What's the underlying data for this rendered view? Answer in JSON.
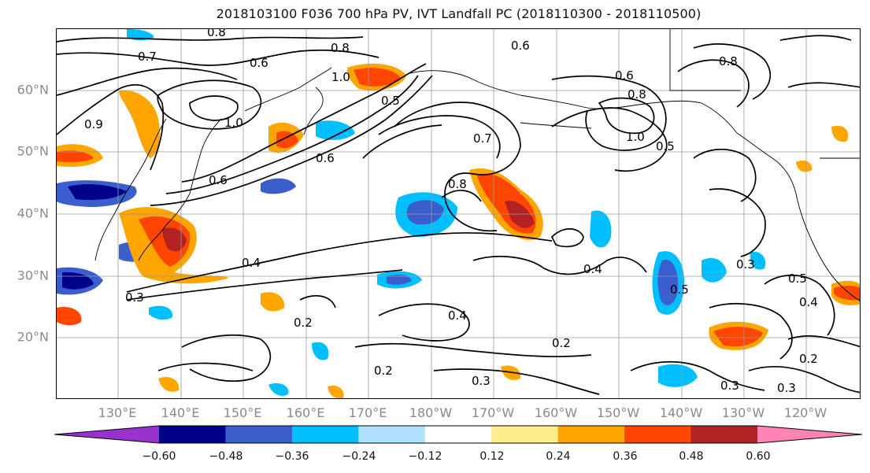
{
  "title": "2018103100 F036 700 hPa PV, IVT Landfall PC (2018110300 - 2018110500)",
  "map": {
    "lat_labels": [
      "60°N",
      "50°N",
      "40°N",
      "30°N",
      "20°N"
    ],
    "lon_labels": [
      "130°E",
      "140°E",
      "150°E",
      "160°E",
      "170°E",
      "180°W",
      "170°W",
      "160°W",
      "150°W",
      "140°W",
      "130°W",
      "120°W"
    ],
    "contour_labels": [
      "0.8",
      "0.7",
      "0.6",
      "0.8",
      "1.0",
      "0.5",
      "0.9",
      "1.0",
      "0.6",
      "0.6",
      "0.7",
      "0.6",
      "0.8",
      "0.8",
      "1.0",
      "0.5",
      "0.6",
      "0.8",
      "0.4",
      "0.3",
      "0.4",
      "0.5",
      "0.3",
      "0.5",
      "0.4",
      "0.2",
      "0.4",
      "0.2",
      "0.3",
      "0.2",
      "0.3",
      "0.3",
      "0.2"
    ],
    "colors": {
      "coast": "#000000",
      "grid": "#9a9a9a",
      "contour": "#000000"
    }
  },
  "colorbar": {
    "tick_labels": [
      "−0.60",
      "−0.48",
      "−0.36",
      "−0.24",
      "−0.12",
      "0.12",
      "0.24",
      "0.36",
      "0.48",
      "0.60"
    ],
    "colors": [
      "#9932cc",
      "#00008b",
      "#3a5fcd",
      "#00bfff",
      "#b0e2ff",
      "#ffffff",
      "#ffec8b",
      "#ffa500",
      "#ff4500",
      "#b22222",
      "#ff83b4"
    ]
  }
}
